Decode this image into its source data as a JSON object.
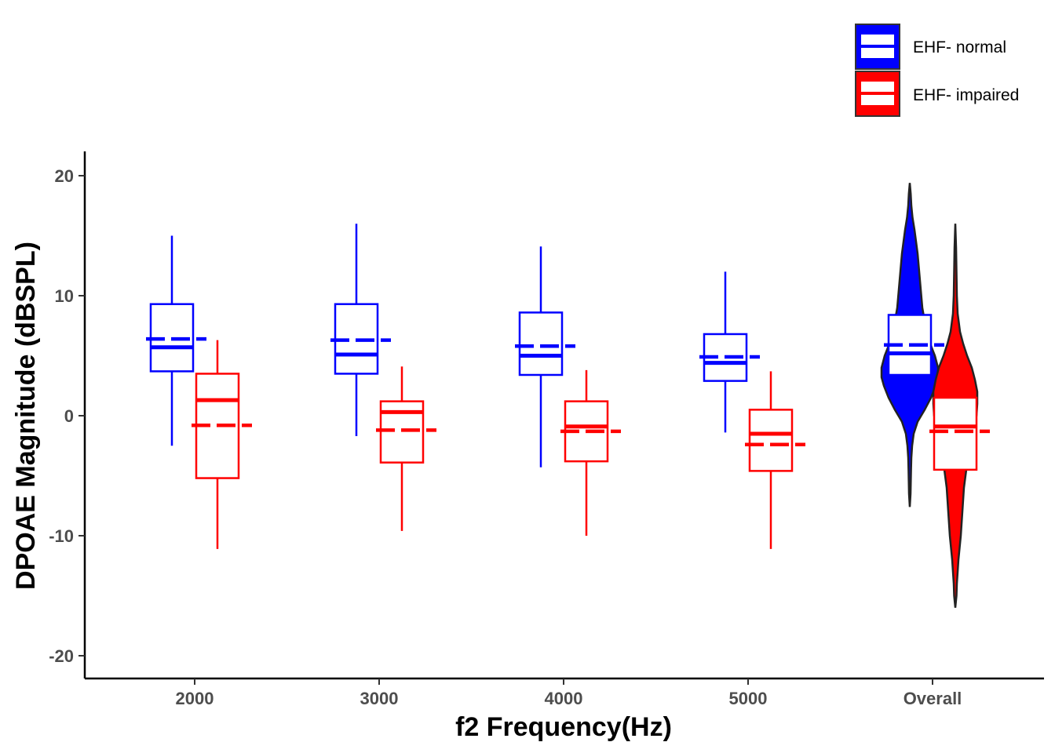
{
  "chart_data": {
    "type": "boxplot",
    "xlabel": "f2 Frequency(Hz)",
    "ylabel": "DPOAE Magnitude (dBSPL)",
    "ylim": [
      -22,
      22
    ],
    "yticks": [
      20,
      10,
      0,
      -10,
      -20
    ],
    "yticklabels": [
      "20",
      "10",
      "0",
      "-10",
      "-20"
    ],
    "categories": [
      "2000",
      "3000",
      "4000",
      "5000",
      "Overall"
    ],
    "grid": false,
    "legend_position": "top-right",
    "series": [
      {
        "name": "EHF- normal",
        "color": "#0000ff",
        "boxes": [
          {
            "category": "2000",
            "whisker_low": -2.5,
            "q1": 3.7,
            "median": 5.7,
            "mean": 6.4,
            "q3": 9.3,
            "whisker_high": 15.0
          },
          {
            "category": "3000",
            "whisker_low": -1.7,
            "q1": 3.5,
            "median": 5.1,
            "mean": 6.3,
            "q3": 9.3,
            "whisker_high": 16.0
          },
          {
            "category": "4000",
            "whisker_low": -4.3,
            "q1": 3.4,
            "median": 5.0,
            "mean": 5.8,
            "q3": 8.6,
            "whisker_high": 14.1
          },
          {
            "category": "5000",
            "whisker_low": -1.4,
            "q1": 2.9,
            "median": 4.4,
            "mean": 4.9,
            "q3": 6.8,
            "whisker_high": 12.0
          },
          {
            "category": "Overall",
            "q1": 3.4,
            "median": 5.2,
            "mean": 5.9,
            "q3": 8.4,
            "violin_min": -7.6,
            "violin_max": 19.4
          }
        ]
      },
      {
        "name": "EHF- impaired",
        "color": "#ff0000",
        "boxes": [
          {
            "category": "2000",
            "whisker_low": -11.1,
            "q1": -5.2,
            "median": 1.3,
            "mean": -0.8,
            "q3": 3.5,
            "whisker_high": 6.3
          },
          {
            "category": "3000",
            "whisker_low": -9.6,
            "q1": -3.9,
            "median": 0.3,
            "mean": -1.2,
            "q3": 1.2,
            "whisker_high": 4.1
          },
          {
            "category": "4000",
            "whisker_low": -10.0,
            "q1": -3.8,
            "median": -0.9,
            "mean": -1.3,
            "q3": 1.2,
            "whisker_high": 3.8
          },
          {
            "category": "5000",
            "whisker_low": -11.1,
            "q1": -4.6,
            "median": -1.5,
            "mean": -2.4,
            "q3": 0.5,
            "whisker_high": 3.7
          },
          {
            "category": "Overall",
            "q1": -4.5,
            "median": -0.9,
            "mean": -1.3,
            "q3": 1.5,
            "violin_min": -16.0,
            "violin_max": 16.0
          }
        ]
      }
    ]
  }
}
